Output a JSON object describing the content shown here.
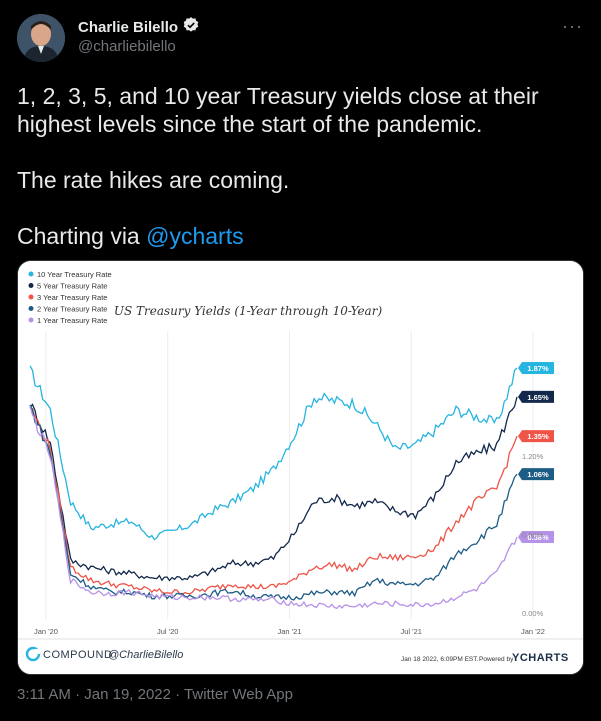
{
  "author": {
    "name": "Charlie Bilello",
    "handle": "@charliebilello"
  },
  "more_label": "···",
  "tweet": {
    "line1": "1, 2, 3, 5, and 10 year Treasury yields close at their highest levels since the start of the pandemic.",
    "line2": "The rate hikes are coming.",
    "line3_prefix": "Charting via ",
    "line3_mention": "@ycharts"
  },
  "timestamp": "3:11 AM · Jan 19, 2022 · Twitter Web App",
  "colors": {
    "accent": "#1d9bf0",
    "verified": "#1d9bf0"
  },
  "chart_data": {
    "type": "line",
    "title": "US Treasury Yields (1-Year through 10-Year)",
    "x_ticks": [
      "Jan '20",
      "Jul '20",
      "Jan '21",
      "Jul '21",
      "Jan '22"
    ],
    "y_ticks": [
      "1.20%",
      "0.60%",
      "0.00%"
    ],
    "ylim": [
      0,
      2.0
    ],
    "legend_position": "top-left",
    "grid": true,
    "footer_brand": "COMPOUND",
    "footer_handle": "@CharlieBilello",
    "footer_date": "Jan 18 2022, 6:09PM EST.",
    "footer_powered": "Powered by",
    "footer_ycharts": "YCHARTS",
    "series": [
      {
        "name": "10 Year Treasury Rate",
        "color": "#26b5e0",
        "last_label": "1.87%",
        "x": [
          "2020-01",
          "2020-02",
          "2020-03",
          "2020-04",
          "2020-05",
          "2020-06",
          "2020-07",
          "2020-08",
          "2020-09",
          "2020-10",
          "2020-11",
          "2020-12",
          "2021-01",
          "2021-02",
          "2021-03",
          "2021-04",
          "2021-05",
          "2021-06",
          "2021-07",
          "2021-08",
          "2021-09",
          "2021-10",
          "2021-11",
          "2021-12",
          "2022-01"
        ],
        "values": [
          1.85,
          1.55,
          0.85,
          0.65,
          0.68,
          0.7,
          0.58,
          0.62,
          0.68,
          0.78,
          0.85,
          0.95,
          1.1,
          1.35,
          1.65,
          1.62,
          1.6,
          1.45,
          1.25,
          1.28,
          1.4,
          1.55,
          1.5,
          1.45,
          1.87
        ]
      },
      {
        "name": "5 Year Treasury Rate",
        "color": "#13284a",
        "last_label": "1.65%",
        "x": [
          "2020-01",
          "2020-02",
          "2020-03",
          "2020-04",
          "2020-05",
          "2020-06",
          "2020-07",
          "2020-08",
          "2020-09",
          "2020-10",
          "2020-11",
          "2020-12",
          "2021-01",
          "2021-02",
          "2021-03",
          "2021-04",
          "2021-05",
          "2021-06",
          "2021-07",
          "2021-08",
          "2021-09",
          "2021-10",
          "2021-11",
          "2021-12",
          "2022-01"
        ],
        "values": [
          1.6,
          1.3,
          0.4,
          0.35,
          0.32,
          0.3,
          0.27,
          0.27,
          0.27,
          0.32,
          0.38,
          0.38,
          0.42,
          0.6,
          0.85,
          0.88,
          0.82,
          0.85,
          0.78,
          0.75,
          0.9,
          1.15,
          1.22,
          1.28,
          1.65
        ]
      },
      {
        "name": "3 Year Treasury Rate",
        "color": "#ef5448",
        "last_label": "1.35%",
        "x": [
          "2020-01",
          "2020-02",
          "2020-03",
          "2020-04",
          "2020-05",
          "2020-06",
          "2020-07",
          "2020-08",
          "2020-09",
          "2020-10",
          "2020-11",
          "2020-12",
          "2021-01",
          "2021-02",
          "2021-03",
          "2021-04",
          "2021-05",
          "2021-06",
          "2021-07",
          "2021-08",
          "2021-09",
          "2021-10",
          "2021-11",
          "2021-12",
          "2022-01"
        ],
        "values": [
          1.58,
          1.25,
          0.35,
          0.25,
          0.22,
          0.2,
          0.17,
          0.16,
          0.16,
          0.19,
          0.22,
          0.2,
          0.2,
          0.25,
          0.35,
          0.37,
          0.33,
          0.43,
          0.42,
          0.43,
          0.5,
          0.7,
          0.85,
          0.95,
          1.35
        ]
      },
      {
        "name": "2 Year Treasury Rate",
        "color": "#1d5c85",
        "last_label": "1.06%",
        "x": [
          "2020-01",
          "2020-02",
          "2020-03",
          "2020-04",
          "2020-05",
          "2020-06",
          "2020-07",
          "2020-08",
          "2020-09",
          "2020-10",
          "2020-11",
          "2020-12",
          "2021-01",
          "2021-02",
          "2021-03",
          "2021-04",
          "2021-05",
          "2021-06",
          "2021-07",
          "2021-08",
          "2021-09",
          "2021-10",
          "2021-11",
          "2021-12",
          "2022-01"
        ],
        "values": [
          1.58,
          1.22,
          0.3,
          0.2,
          0.16,
          0.16,
          0.13,
          0.13,
          0.13,
          0.15,
          0.17,
          0.13,
          0.12,
          0.12,
          0.15,
          0.16,
          0.15,
          0.25,
          0.22,
          0.22,
          0.27,
          0.45,
          0.55,
          0.68,
          1.06
        ]
      },
      {
        "name": "1 Year Treasury Rate",
        "color": "#b591e8",
        "last_label": "0.58%",
        "x": [
          "2020-01",
          "2020-02",
          "2020-03",
          "2020-04",
          "2020-05",
          "2020-06",
          "2020-07",
          "2020-08",
          "2020-09",
          "2020-10",
          "2020-11",
          "2020-12",
          "2021-01",
          "2021-02",
          "2021-03",
          "2021-04",
          "2021-05",
          "2021-06",
          "2021-07",
          "2021-08",
          "2021-09",
          "2021-10",
          "2021-11",
          "2021-12",
          "2022-01"
        ],
        "values": [
          1.55,
          1.2,
          0.25,
          0.16,
          0.15,
          0.16,
          0.13,
          0.12,
          0.12,
          0.12,
          0.11,
          0.1,
          0.1,
          0.07,
          0.06,
          0.05,
          0.05,
          0.07,
          0.07,
          0.06,
          0.07,
          0.12,
          0.18,
          0.3,
          0.58
        ]
      }
    ]
  }
}
